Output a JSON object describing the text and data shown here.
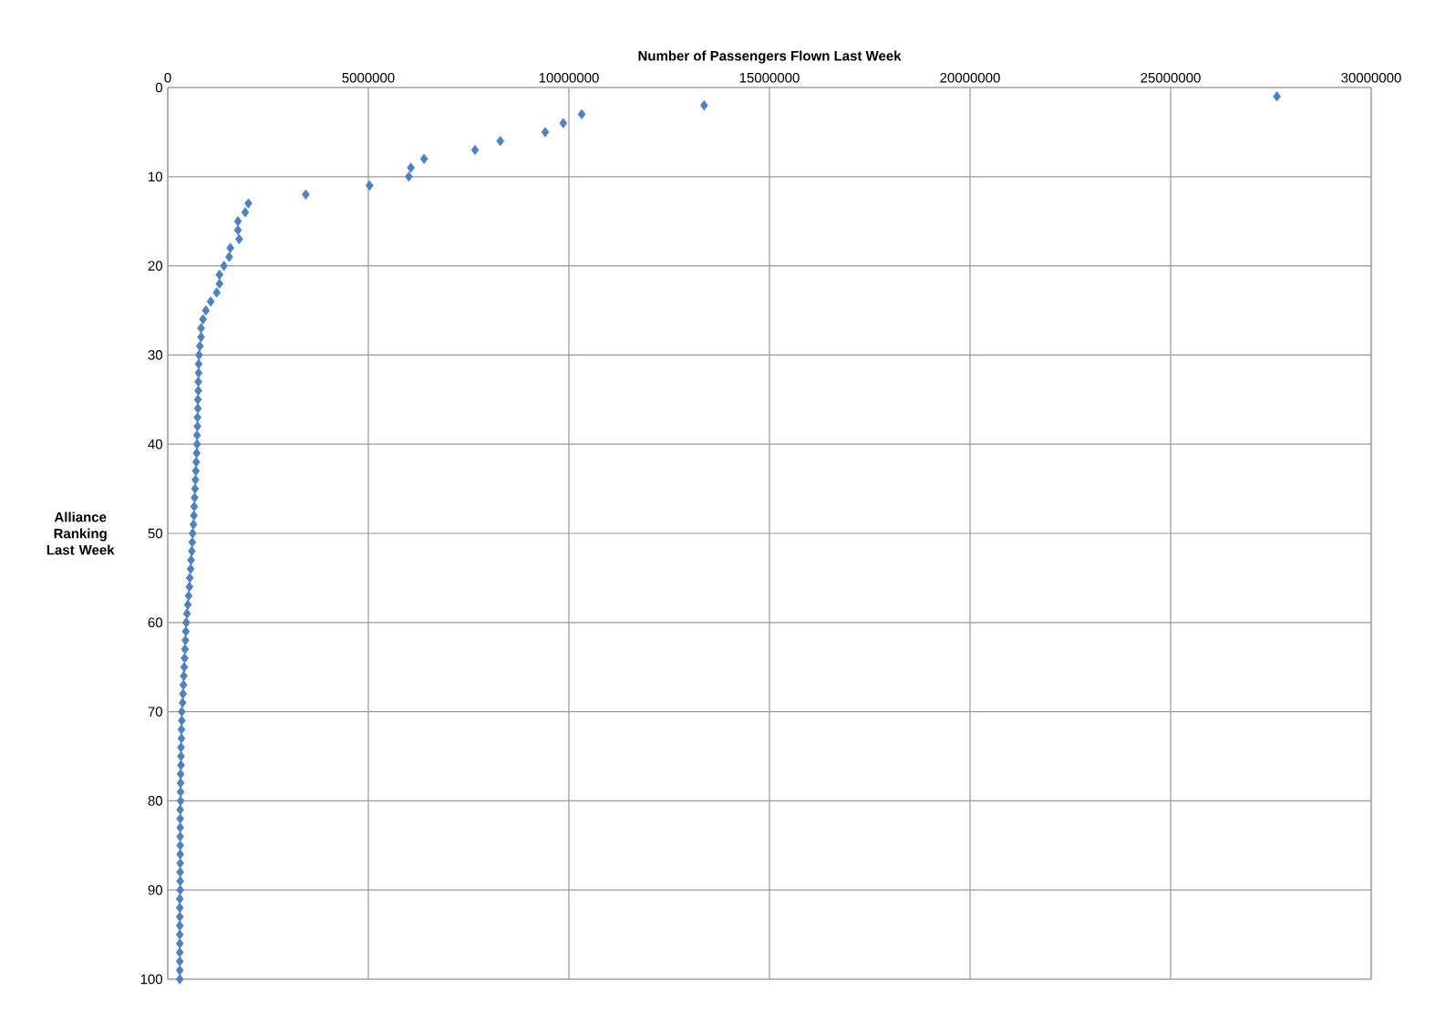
{
  "chart_data": {
    "type": "scatter",
    "xlabel": "Number of Passengers Flown Last Week",
    "ylabel": "Alliance Ranking Last Week",
    "x": [
      27650000,
      13370000,
      10320000,
      9860000,
      9410000,
      8290000,
      7660000,
      6390000,
      6060000,
      6010000,
      5030000,
      3440000,
      2010000,
      1930000,
      1750000,
      1750000,
      1780000,
      1560000,
      1530000,
      1400000,
      1290000,
      1290000,
      1220000,
      1070000,
      950000,
      880000,
      830000,
      830000,
      800000,
      780000,
      770000,
      770000,
      760000,
      760000,
      750000,
      750000,
      740000,
      740000,
      730000,
      730000,
      720000,
      710000,
      700000,
      690000,
      680000,
      670000,
      660000,
      650000,
      640000,
      620000,
      610000,
      600000,
      580000,
      570000,
      550000,
      540000,
      520000,
      500000,
      480000,
      460000,
      450000,
      440000,
      430000,
      420000,
      410000,
      400000,
      390000,
      380000,
      370000,
      350000,
      350000,
      340000,
      340000,
      330000,
      330000,
      330000,
      320000,
      320000,
      320000,
      320000,
      310000,
      310000,
      310000,
      310000,
      310000,
      310000,
      310000,
      310000,
      310000,
      310000,
      300000,
      300000,
      300000,
      300000,
      300000,
      300000,
      300000,
      300000,
      300000,
      300000
    ],
    "values": [
      1,
      2,
      3,
      4,
      5,
      6,
      7,
      8,
      9,
      10,
      11,
      12,
      13,
      14,
      15,
      16,
      17,
      18,
      19,
      20,
      21,
      22,
      23,
      24,
      25,
      26,
      27,
      28,
      29,
      30,
      31,
      32,
      33,
      34,
      35,
      36,
      37,
      38,
      39,
      40,
      41,
      42,
      43,
      44,
      45,
      46,
      47,
      48,
      49,
      50,
      51,
      52,
      53,
      54,
      55,
      56,
      57,
      58,
      59,
      60,
      61,
      62,
      63,
      64,
      65,
      66,
      67,
      68,
      69,
      70,
      71,
      72,
      73,
      74,
      75,
      76,
      77,
      78,
      79,
      80,
      81,
      82,
      83,
      84,
      85,
      86,
      87,
      88,
      89,
      90,
      91,
      92,
      93,
      94,
      95,
      96,
      97,
      98,
      99,
      100
    ],
    "color": "#4f81bd",
    "marker": "diamond",
    "xlim": [
      0,
      30000000
    ],
    "xticks": [
      0,
      5000000,
      10000000,
      15000000,
      20000000,
      25000000,
      30000000
    ],
    "ylim": [
      100,
      0
    ],
    "yticks": [
      0,
      10,
      20,
      30,
      40,
      50,
      60,
      70,
      80,
      90,
      100
    ],
    "grid": true
  }
}
